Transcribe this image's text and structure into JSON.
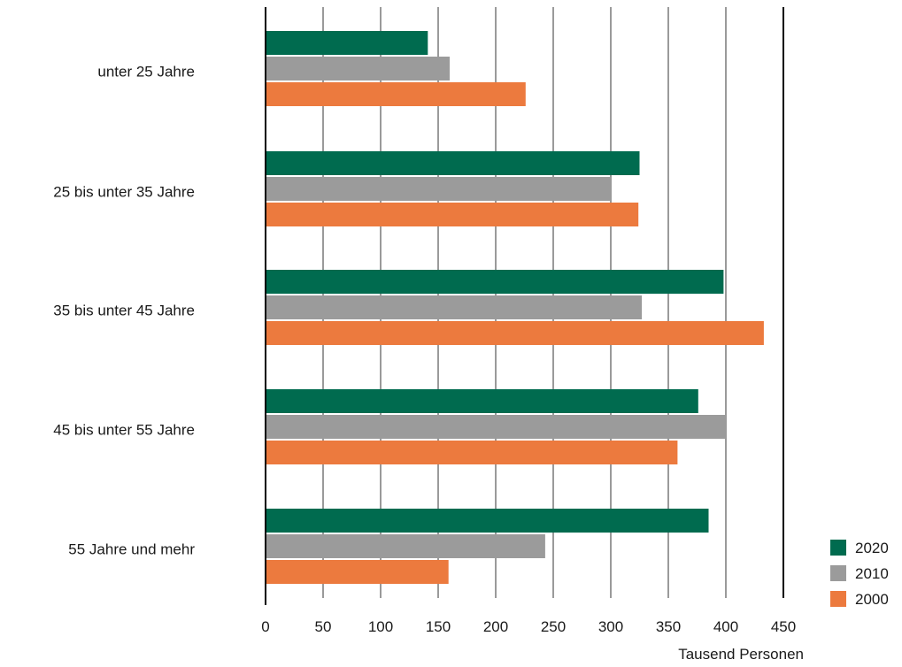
{
  "chart_data": {
    "type": "bar",
    "orientation": "horizontal",
    "categories": [
      "unter 25 Jahre",
      "25 bis unter 35 Jahre",
      "35 bis unter 45 Jahre",
      "45 bis unter 55 Jahre",
      "55 Jahre und mehr"
    ],
    "series": [
      {
        "name": "2020",
        "color": "#006b4f",
        "values": [
          141,
          325,
          398,
          376,
          385
        ]
      },
      {
        "name": "2010",
        "color": "#9b9b9b",
        "values": [
          160,
          300,
          327,
          400,
          243
        ]
      },
      {
        "name": "2000",
        "color": "#ec7a3e",
        "values": [
          226,
          324,
          433,
          358,
          159
        ]
      }
    ],
    "xlabel": "Tausend Personen",
    "xlim": [
      0,
      450
    ],
    "xticks": [
      "0",
      "50",
      "100",
      "150",
      "200",
      "250",
      "300",
      "350",
      "400",
      "450"
    ],
    "grid": true,
    "legend_position": "bottom-right"
  }
}
